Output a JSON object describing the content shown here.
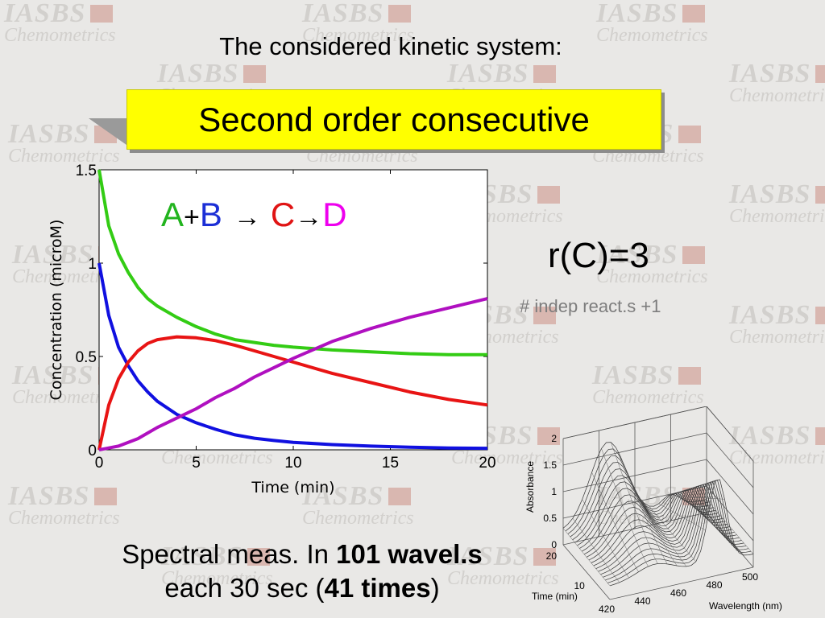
{
  "slide": {
    "title": "The considered kinetic system:",
    "banner": "Second order consecutive",
    "rank_text": "r(C)=3",
    "indep_text": "# indep react.s +1",
    "spectral": {
      "line1_prefix": "Spectral meas. In ",
      "line1_bold": "101 wavel.s",
      "line2_prefix": "each 30 sec (",
      "line2_bold": "41 times",
      "line2_suffix": ")"
    }
  },
  "watermark": {
    "line1": "IASBS",
    "line2": "Chemometrics"
  },
  "colors": {
    "A": "#22b41e",
    "B": "#1c2fd6",
    "C": "#e01414",
    "D": "#ee00ee",
    "plus": "#000000",
    "arrow": "#000000",
    "banner": "#ffff00"
  },
  "reaction": {
    "A": "A",
    "plus": "+",
    "B": "B",
    "arrow1": "→",
    "C": "C",
    "arrow2": "→",
    "D": "D"
  },
  "chart_data": [
    {
      "type": "line",
      "xlabel": "Time (min)",
      "ylabel": "Concentration (microM)",
      "xlim": [
        0,
        20
      ],
      "ylim": [
        0,
        1.5
      ],
      "xticks": [
        0,
        5,
        10,
        15,
        20
      ],
      "yticks": [
        0,
        0.5,
        1,
        1.5
      ],
      "ytick_labels": [
        "0",
        "0.5",
        "1",
        "1.5"
      ],
      "grid": false,
      "x": [
        0,
        0.5,
        1,
        1.5,
        2,
        2.5,
        3,
        4,
        5,
        6,
        7,
        8,
        9,
        10,
        12,
        14,
        16,
        18,
        20
      ],
      "series": [
        {
          "key": "A",
          "color": "#33cc14",
          "values": [
            1.5,
            1.2,
            1.05,
            0.95,
            0.87,
            0.81,
            0.77,
            0.71,
            0.66,
            0.62,
            0.59,
            0.575,
            0.56,
            0.55,
            0.535,
            0.525,
            0.515,
            0.51,
            0.51
          ]
        },
        {
          "key": "B",
          "color": "#1010e0",
          "values": [
            1.0,
            0.72,
            0.55,
            0.45,
            0.37,
            0.31,
            0.26,
            0.19,
            0.145,
            0.11,
            0.08,
            0.062,
            0.05,
            0.04,
            0.028,
            0.02,
            0.014,
            0.01,
            0.008
          ]
        },
        {
          "key": "C",
          "color": "#e81414",
          "values": [
            0.0,
            0.24,
            0.38,
            0.47,
            0.53,
            0.57,
            0.59,
            0.605,
            0.6,
            0.585,
            0.56,
            0.53,
            0.5,
            0.47,
            0.41,
            0.36,
            0.31,
            0.27,
            0.24
          ]
        },
        {
          "key": "D",
          "color": "#b010c0",
          "values": [
            0.0,
            0.01,
            0.02,
            0.04,
            0.06,
            0.09,
            0.12,
            0.17,
            0.22,
            0.28,
            0.33,
            0.39,
            0.44,
            0.49,
            0.58,
            0.65,
            0.71,
            0.76,
            0.81
          ]
        }
      ]
    },
    {
      "type": "surface3d",
      "xlabel": "Wavelength (nm)",
      "ylabel": "Time (min)",
      "zlabel": "Absorbance",
      "xticks": [
        420,
        440,
        460,
        480,
        500
      ],
      "yticks": [
        10,
        20
      ],
      "zticks": [
        "0",
        "0.5",
        "1",
        "1.5",
        "2"
      ],
      "xlim": [
        420,
        500
      ],
      "ylim": [
        0,
        20
      ],
      "zlim": [
        0,
        2
      ],
      "peaks": [
        {
          "wavelength": 445,
          "absorbance_max": 1.5
        },
        {
          "wavelength": 480,
          "absorbance_max": 1.6
        }
      ]
    }
  ]
}
